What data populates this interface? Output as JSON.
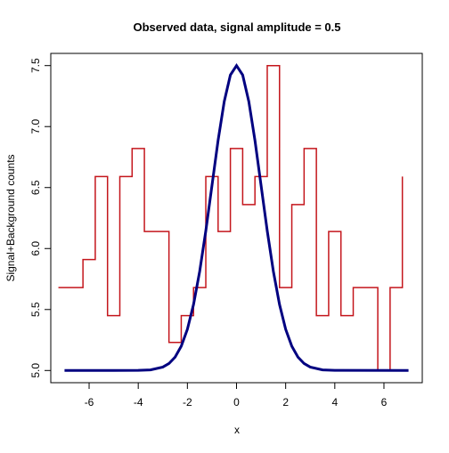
{
  "chart_data": {
    "type": "line",
    "title": "Observed data, signal amplitude = 0.5",
    "x_label": "x",
    "y_label": "Signal+Background counts",
    "xlim": [
      -7.56,
      7.56
    ],
    "ylim": [
      4.9,
      7.6
    ],
    "xticks": [
      -6,
      -4,
      -2,
      0,
      2,
      4,
      6
    ],
    "yticks": [
      {
        "value": 5,
        "label": "5.0"
      },
      5.5,
      {
        "value": 6,
        "label": "6.0"
      },
      6.5,
      {
        "value": 7,
        "label": "7.0"
      },
      7.5
    ],
    "series": [
      {
        "color": "#c4161c",
        "step": true,
        "x": [
          -7.25,
          -6.75,
          -6.25,
          -5.75,
          -5.25,
          -4.75,
          -4.25,
          -3.75,
          -3.25,
          -2.75,
          -2.25,
          -1.75,
          -1.25,
          -0.75,
          -0.25,
          0.25,
          0.75,
          1.25,
          1.75,
          2.25,
          2.75,
          3.25,
          3.75,
          4.25,
          4.75,
          5.25,
          5.75,
          6.25,
          6.75
        ],
        "values": [
          5.68,
          5.68,
          5.91,
          6.59,
          5.45,
          6.59,
          6.82,
          6.14,
          6.14,
          5.23,
          5.45,
          5.68,
          6.59,
          6.14,
          6.82,
          6.36,
          6.59,
          7.5,
          5.68,
          6.36,
          6.82,
          5.45,
          6.14,
          5.45,
          5.68,
          5.68,
          5.0,
          5.68,
          6.59
        ]
      },
      {
        "color": "#000080",
        "step": false,
        "x": [
          -7,
          -4,
          -3.5,
          -3,
          -2.75,
          -2.5,
          -2.25,
          -2,
          -1.75,
          -1.5,
          -1.25,
          -1,
          -0.75,
          -0.5,
          -0.25,
          0,
          0.25,
          0.5,
          0.75,
          1,
          1.25,
          1.5,
          1.75,
          2,
          2.25,
          2.5,
          2.75,
          3,
          3.5,
          4,
          7
        ],
        "values": [
          5.0,
          5.001,
          5.005,
          5.028,
          5.057,
          5.11,
          5.199,
          5.338,
          5.541,
          5.812,
          6.145,
          6.516,
          6.887,
          7.206,
          7.423,
          7.5,
          7.423,
          7.206,
          6.887,
          6.516,
          6.145,
          5.812,
          5.541,
          5.338,
          5.199,
          5.11,
          5.057,
          5.028,
          5.005,
          5.001,
          5.0
        ]
      }
    ]
  }
}
